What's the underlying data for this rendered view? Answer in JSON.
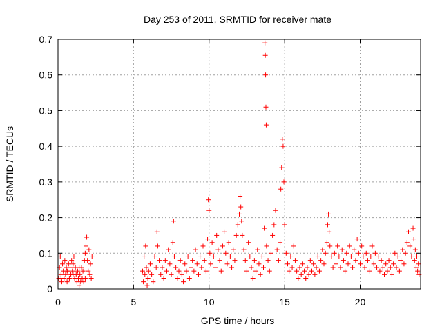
{
  "chart_data": {
    "type": "scatter",
    "title": "Day 253 of 2011, SRMTID for receiver mate",
    "xlabel": "GPS time / hours",
    "ylabel": "SRMTID / TECUs",
    "xlim": [
      0,
      24
    ],
    "ylim": [
      0,
      0.7
    ],
    "xticks": [
      0,
      5,
      10,
      15,
      20
    ],
    "xtick_labels": [
      "0",
      "5",
      "10",
      "15",
      "20"
    ],
    "yticks": [
      0,
      0.1,
      0.2,
      0.3,
      0.4,
      0.5,
      0.6,
      0.7
    ],
    "ytick_labels": [
      "0",
      "0.1",
      "0.2",
      "0.3",
      "0.4",
      "0.5",
      "0.6",
      "0.7"
    ],
    "grid": true,
    "marker": "+",
    "series_color": "#ff0000",
    "series": [
      {
        "name": "SRMTID",
        "points": [
          [
            0.05,
            0.03
          ],
          [
            0.1,
            0.06
          ],
          [
            0.15,
            0.09
          ],
          [
            0.2,
            0.04
          ],
          [
            0.25,
            0.02
          ],
          [
            0.3,
            0.07
          ],
          [
            0.35,
            0.05
          ],
          [
            0.4,
            0.03
          ],
          [
            0.45,
            0.08
          ],
          [
            0.5,
            0.04
          ],
          [
            0.55,
            0.06
          ],
          [
            0.6,
            0.02
          ],
          [
            0.65,
            0.05
          ],
          [
            0.7,
            0.07
          ],
          [
            0.75,
            0.03
          ],
          [
            0.8,
            0.06
          ],
          [
            0.85,
            0.04
          ],
          [
            0.9,
            0.08
          ],
          [
            0.95,
            0.05
          ],
          [
            1.0,
            0.07
          ],
          [
            1.05,
            0.09
          ],
          [
            1.1,
            0.03
          ],
          [
            1.15,
            0.06
          ],
          [
            1.2,
            0.04
          ],
          [
            1.25,
            0.02
          ],
          [
            1.3,
            0.05
          ],
          [
            1.35,
            0.03
          ],
          [
            1.4,
            0.01
          ],
          [
            1.45,
            0.04
          ],
          [
            1.5,
            0.02
          ],
          [
            1.55,
            0.06
          ],
          [
            1.6,
            0.03
          ],
          [
            1.65,
            0.05
          ],
          [
            1.7,
            0.02
          ],
          [
            1.75,
            0.08
          ],
          [
            1.8,
            0.1
          ],
          [
            1.85,
            0.12
          ],
          [
            1.9,
            0.145
          ],
          [
            1.95,
            0.08
          ],
          [
            2.0,
            0.05
          ],
          [
            2.05,
            0.11
          ],
          [
            2.1,
            0.04
          ],
          [
            2.15,
            0.07
          ],
          [
            2.2,
            0.03
          ],
          [
            2.25,
            0.09
          ],
          [
            0.2,
            0.03
          ],
          [
            0.6,
            0.05
          ],
          [
            1.0,
            0.04
          ],
          [
            1.4,
            0.06
          ],
          [
            1.8,
            0.03
          ],
          [
            5.6,
            0.05
          ],
          [
            5.65,
            0.02
          ],
          [
            5.7,
            0.09
          ],
          [
            5.75,
            0.04
          ],
          [
            5.8,
            0.12
          ],
          [
            5.85,
            0.06
          ],
          [
            5.9,
            0.01
          ],
          [
            5.95,
            0.03
          ],
          [
            6.0,
            0.05
          ],
          [
            6.1,
            0.07
          ],
          [
            6.2,
            0.04
          ],
          [
            6.3,
            0.02
          ],
          [
            6.4,
            0.09
          ],
          [
            6.5,
            0.06
          ],
          [
            6.55,
            0.16
          ],
          [
            6.6,
            0.12
          ],
          [
            6.7,
            0.08
          ],
          [
            6.8,
            0.04
          ],
          [
            6.9,
            0.06
          ],
          [
            7.0,
            0.03
          ],
          [
            7.1,
            0.08
          ],
          [
            7.2,
            0.05
          ],
          [
            7.3,
            0.11
          ],
          [
            7.4,
            0.07
          ],
          [
            7.5,
            0.04
          ],
          [
            7.6,
            0.13
          ],
          [
            7.65,
            0.19
          ],
          [
            7.7,
            0.09
          ],
          [
            7.8,
            0.06
          ],
          [
            7.9,
            0.03
          ],
          [
            8.0,
            0.05
          ],
          [
            8.1,
            0.08
          ],
          [
            8.2,
            0.04
          ],
          [
            8.3,
            0.02
          ],
          [
            8.4,
            0.07
          ],
          [
            8.5,
            0.05
          ],
          [
            8.6,
            0.09
          ],
          [
            8.7,
            0.03
          ],
          [
            8.8,
            0.06
          ],
          [
            8.9,
            0.08
          ],
          [
            9.0,
            0.05
          ],
          [
            9.1,
            0.11
          ],
          [
            9.2,
            0.07
          ],
          [
            9.3,
            0.04
          ],
          [
            9.4,
            0.09
          ],
          [
            9.5,
            0.06
          ],
          [
            9.6,
            0.12
          ],
          [
            9.7,
            0.08
          ],
          [
            9.8,
            0.05
          ],
          [
            9.9,
            0.14
          ],
          [
            9.95,
            0.25
          ],
          [
            10.0,
            0.22
          ],
          [
            10.05,
            0.1
          ],
          [
            10.1,
            0.07
          ],
          [
            10.2,
            0.13
          ],
          [
            10.3,
            0.09
          ],
          [
            10.4,
            0.06
          ],
          [
            10.5,
            0.15
          ],
          [
            10.6,
            0.11
          ],
          [
            10.7,
            0.08
          ],
          [
            10.8,
            0.05
          ],
          [
            10.9,
            0.12
          ],
          [
            11.0,
            0.16
          ],
          [
            11.1,
            0.1
          ],
          [
            11.2,
            0.07
          ],
          [
            11.3,
            0.13
          ],
          [
            11.4,
            0.09
          ],
          [
            11.5,
            0.06
          ],
          [
            11.6,
            0.11
          ],
          [
            11.7,
            0.08
          ],
          [
            11.8,
            0.15
          ],
          [
            11.9,
            0.18
          ],
          [
            12.0,
            0.21
          ],
          [
            12.05,
            0.26
          ],
          [
            12.1,
            0.23
          ],
          [
            12.15,
            0.19
          ],
          [
            12.2,
            0.15
          ],
          [
            12.3,
            0.11
          ],
          [
            12.4,
            0.08
          ],
          [
            12.5,
            0.05
          ],
          [
            12.6,
            0.13
          ],
          [
            12.7,
            0.09
          ],
          [
            12.8,
            0.06
          ],
          [
            12.9,
            0.03
          ],
          [
            13.0,
            0.08
          ],
          [
            13.1,
            0.05
          ],
          [
            13.2,
            0.11
          ],
          [
            13.3,
            0.07
          ],
          [
            13.4,
            0.04
          ],
          [
            13.5,
            0.09
          ],
          [
            13.6,
            0.06
          ],
          [
            13.65,
            0.17
          ],
          [
            13.7,
            0.69
          ],
          [
            13.72,
            0.655
          ],
          [
            13.74,
            0.6
          ],
          [
            13.76,
            0.51
          ],
          [
            13.78,
            0.46
          ],
          [
            13.8,
            0.12
          ],
          [
            13.9,
            0.08
          ],
          [
            14.0,
            0.05
          ],
          [
            14.1,
            0.1
          ],
          [
            14.2,
            0.15
          ],
          [
            14.3,
            0.18
          ],
          [
            14.4,
            0.22
          ],
          [
            14.5,
            0.11
          ],
          [
            14.6,
            0.08
          ],
          [
            14.7,
            0.13
          ],
          [
            14.75,
            0.28
          ],
          [
            14.8,
            0.34
          ],
          [
            14.85,
            0.42
          ],
          [
            14.9,
            0.4
          ],
          [
            14.95,
            0.3
          ],
          [
            15.0,
            0.18
          ],
          [
            15.1,
            0.1
          ],
          [
            15.2,
            0.07
          ],
          [
            15.3,
            0.05
          ],
          [
            15.4,
            0.09
          ],
          [
            15.5,
            0.06
          ],
          [
            15.6,
            0.12
          ],
          [
            15.7,
            0.08
          ],
          [
            15.8,
            0.05
          ],
          [
            15.9,
            0.03
          ],
          [
            16.0,
            0.06
          ],
          [
            16.1,
            0.04
          ],
          [
            16.2,
            0.07
          ],
          [
            16.3,
            0.05
          ],
          [
            16.4,
            0.03
          ],
          [
            16.5,
            0.06
          ],
          [
            16.6,
            0.04
          ],
          [
            16.7,
            0.08
          ],
          [
            16.8,
            0.05
          ],
          [
            16.9,
            0.07
          ],
          [
            17.0,
            0.04
          ],
          [
            17.1,
            0.06
          ],
          [
            17.2,
            0.09
          ],
          [
            17.3,
            0.05
          ],
          [
            17.4,
            0.08
          ],
          [
            17.5,
            0.11
          ],
          [
            17.6,
            0.07
          ],
          [
            17.7,
            0.1
          ],
          [
            17.8,
            0.13
          ],
          [
            17.85,
            0.18
          ],
          [
            17.9,
            0.21
          ],
          [
            17.95,
            0.16
          ],
          [
            18.0,
            0.12
          ],
          [
            18.1,
            0.09
          ],
          [
            18.2,
            0.06
          ],
          [
            18.3,
            0.1
          ],
          [
            18.4,
            0.07
          ],
          [
            18.5,
            0.12
          ],
          [
            18.6,
            0.09
          ],
          [
            18.7,
            0.06
          ],
          [
            18.8,
            0.11
          ],
          [
            18.9,
            0.08
          ],
          [
            19.0,
            0.05
          ],
          [
            19.1,
            0.1
          ],
          [
            19.2,
            0.07
          ],
          [
            19.3,
            0.12
          ],
          [
            19.4,
            0.09
          ],
          [
            19.5,
            0.06
          ],
          [
            19.6,
            0.11
          ],
          [
            19.7,
            0.08
          ],
          [
            19.8,
            0.14
          ],
          [
            19.9,
            0.1
          ],
          [
            20.0,
            0.07
          ],
          [
            20.1,
            0.12
          ],
          [
            20.2,
            0.09
          ],
          [
            20.3,
            0.06
          ],
          [
            20.4,
            0.1
          ],
          [
            20.5,
            0.08
          ],
          [
            20.6,
            0.05
          ],
          [
            20.7,
            0.09
          ],
          [
            20.8,
            0.12
          ],
          [
            20.9,
            0.07
          ],
          [
            21.0,
            0.1
          ],
          [
            21.1,
            0.06
          ],
          [
            21.2,
            0.09
          ],
          [
            21.3,
            0.05
          ],
          [
            21.4,
            0.08
          ],
          [
            21.5,
            0.06
          ],
          [
            21.6,
            0.04
          ],
          [
            21.7,
            0.07
          ],
          [
            21.8,
            0.05
          ],
          [
            21.9,
            0.08
          ],
          [
            22.0,
            0.06
          ],
          [
            22.1,
            0.04
          ],
          [
            22.2,
            0.07
          ],
          [
            22.3,
            0.1
          ],
          [
            22.4,
            0.06
          ],
          [
            22.5,
            0.09
          ],
          [
            22.6,
            0.05
          ],
          [
            22.7,
            0.08
          ],
          [
            22.8,
            0.11
          ],
          [
            22.9,
            0.07
          ],
          [
            23.0,
            0.1
          ],
          [
            23.1,
            0.13
          ],
          [
            23.2,
            0.16
          ],
          [
            23.3,
            0.12
          ],
          [
            23.4,
            0.09
          ],
          [
            23.5,
            0.17
          ],
          [
            23.55,
            0.14
          ],
          [
            23.6,
            0.08
          ],
          [
            23.65,
            0.11
          ],
          [
            23.7,
            0.06
          ],
          [
            23.75,
            0.09
          ],
          [
            23.8,
            0.05
          ],
          [
            23.85,
            0.07
          ],
          [
            23.9,
            0.04
          ]
        ]
      }
    ]
  }
}
